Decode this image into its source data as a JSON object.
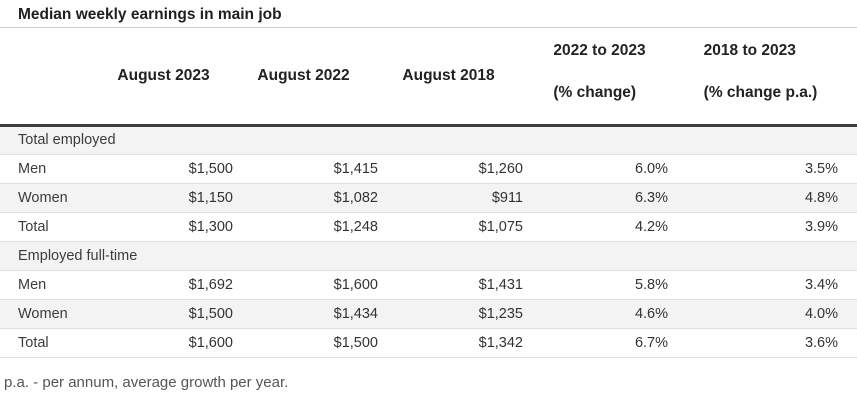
{
  "chart_data": {
    "type": "table",
    "title": "Median weekly earnings in main job",
    "col_headers": {
      "aug2023": "August 2023",
      "aug2022": "August 2022",
      "aug2018": "August 2018",
      "chg_2022_2023_l1": "2022 to 2023",
      "chg_2022_2023_l2": "(% change)",
      "chg_2018_2023_l1": "2018 to 2023",
      "chg_2018_2023_l2": "(% change p.a.)"
    },
    "sections": [
      {
        "header": "Total employed",
        "rows": [
          {
            "label": "Men",
            "values": [
              "$1,500",
              "$1,415",
              "$1,260",
              "6.0%",
              "3.5%"
            ]
          },
          {
            "label": "Women",
            "values": [
              "$1,150",
              "$1,082",
              "$911",
              "6.3%",
              "4.8%"
            ]
          },
          {
            "label": "Total",
            "values": [
              "$1,300",
              "$1,248",
              "$1,075",
              "4.2%",
              "3.9%"
            ]
          }
        ]
      },
      {
        "header": "Employed full-time",
        "rows": [
          {
            "label": "Men",
            "values": [
              "$1,692",
              "$1,600",
              "$1,431",
              "5.8%",
              "3.4%"
            ]
          },
          {
            "label": "Women",
            "values": [
              "$1,500",
              "$1,434",
              "$1,235",
              "4.6%",
              "4.0%"
            ]
          },
          {
            "label": "Total",
            "values": [
              "$1,600",
              "$1,500",
              "$1,342",
              "6.7%",
              "3.6%"
            ]
          }
        ]
      }
    ],
    "footnote": "p.a. - per annum, average growth per year.",
    "layout_hints": {
      "numeric_alignment": "right",
      "header_alignment": "center",
      "striped_rows": true
    }
  },
  "colors": {
    "header_rule": "#3f3f3f",
    "row_stripe": "#f3f3f3",
    "row_border": "#e0e0e0",
    "title_rule": "#cccccc",
    "text_primary": "#333333",
    "text_footnote": "#555555"
  }
}
